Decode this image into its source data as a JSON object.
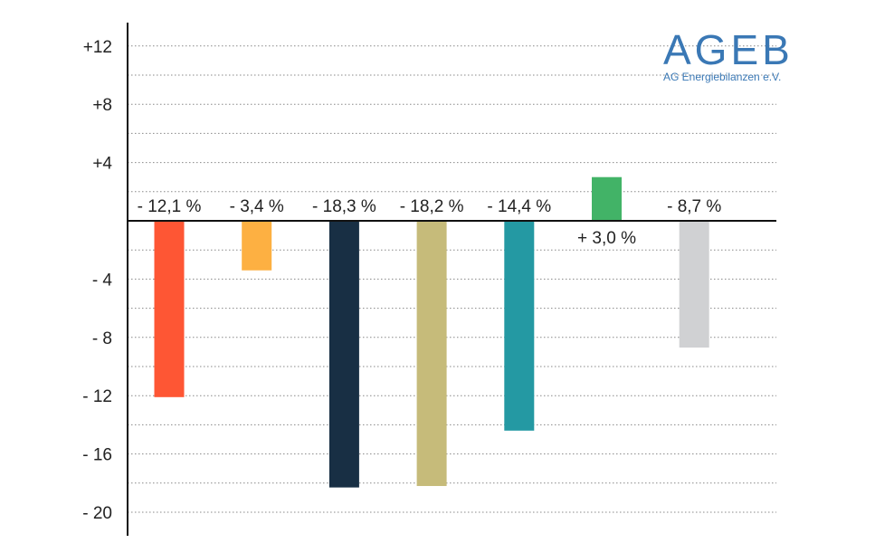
{
  "logo": {
    "name": "AGEB",
    "subtitle": "AG Energiebilanzen e.V."
  },
  "colors": {
    "logo": "#3a78b5",
    "grid": "#888888",
    "axis": "#111111"
  },
  "chart_data": {
    "type": "bar",
    "title": "",
    "xlabel": "",
    "ylabel": "",
    "ylim": [
      -20,
      12
    ],
    "y_ticks": [
      {
        "value": 12,
        "label": "+12"
      },
      {
        "value": 8,
        "label": "+8"
      },
      {
        "value": 4,
        "label": "+4"
      },
      {
        "value": -4,
        "label": "- 4"
      },
      {
        "value": -8,
        "label": "- 8"
      },
      {
        "value": -12,
        "label": "- 12"
      },
      {
        "value": -16,
        "label": "- 16"
      },
      {
        "value": -20,
        "label": "- 20"
      }
    ],
    "grid": true,
    "grid_step": 2,
    "values": [
      -12.1,
      -3.4,
      -18.3,
      -18.2,
      -14.4,
      3.0,
      -8.7
    ],
    "labels": [
      "- 12,1 %",
      "- 3,4 %",
      "- 18,3 %",
      "- 18,2 %",
      "- 14,4 %",
      "+ 3,0 %",
      "- 8,7 %"
    ],
    "colors": [
      "#fe5634",
      "#fdb042",
      "#182f44",
      "#c6bb7a",
      "#2499a3",
      "#42b367",
      "#d0d1d3"
    ]
  }
}
